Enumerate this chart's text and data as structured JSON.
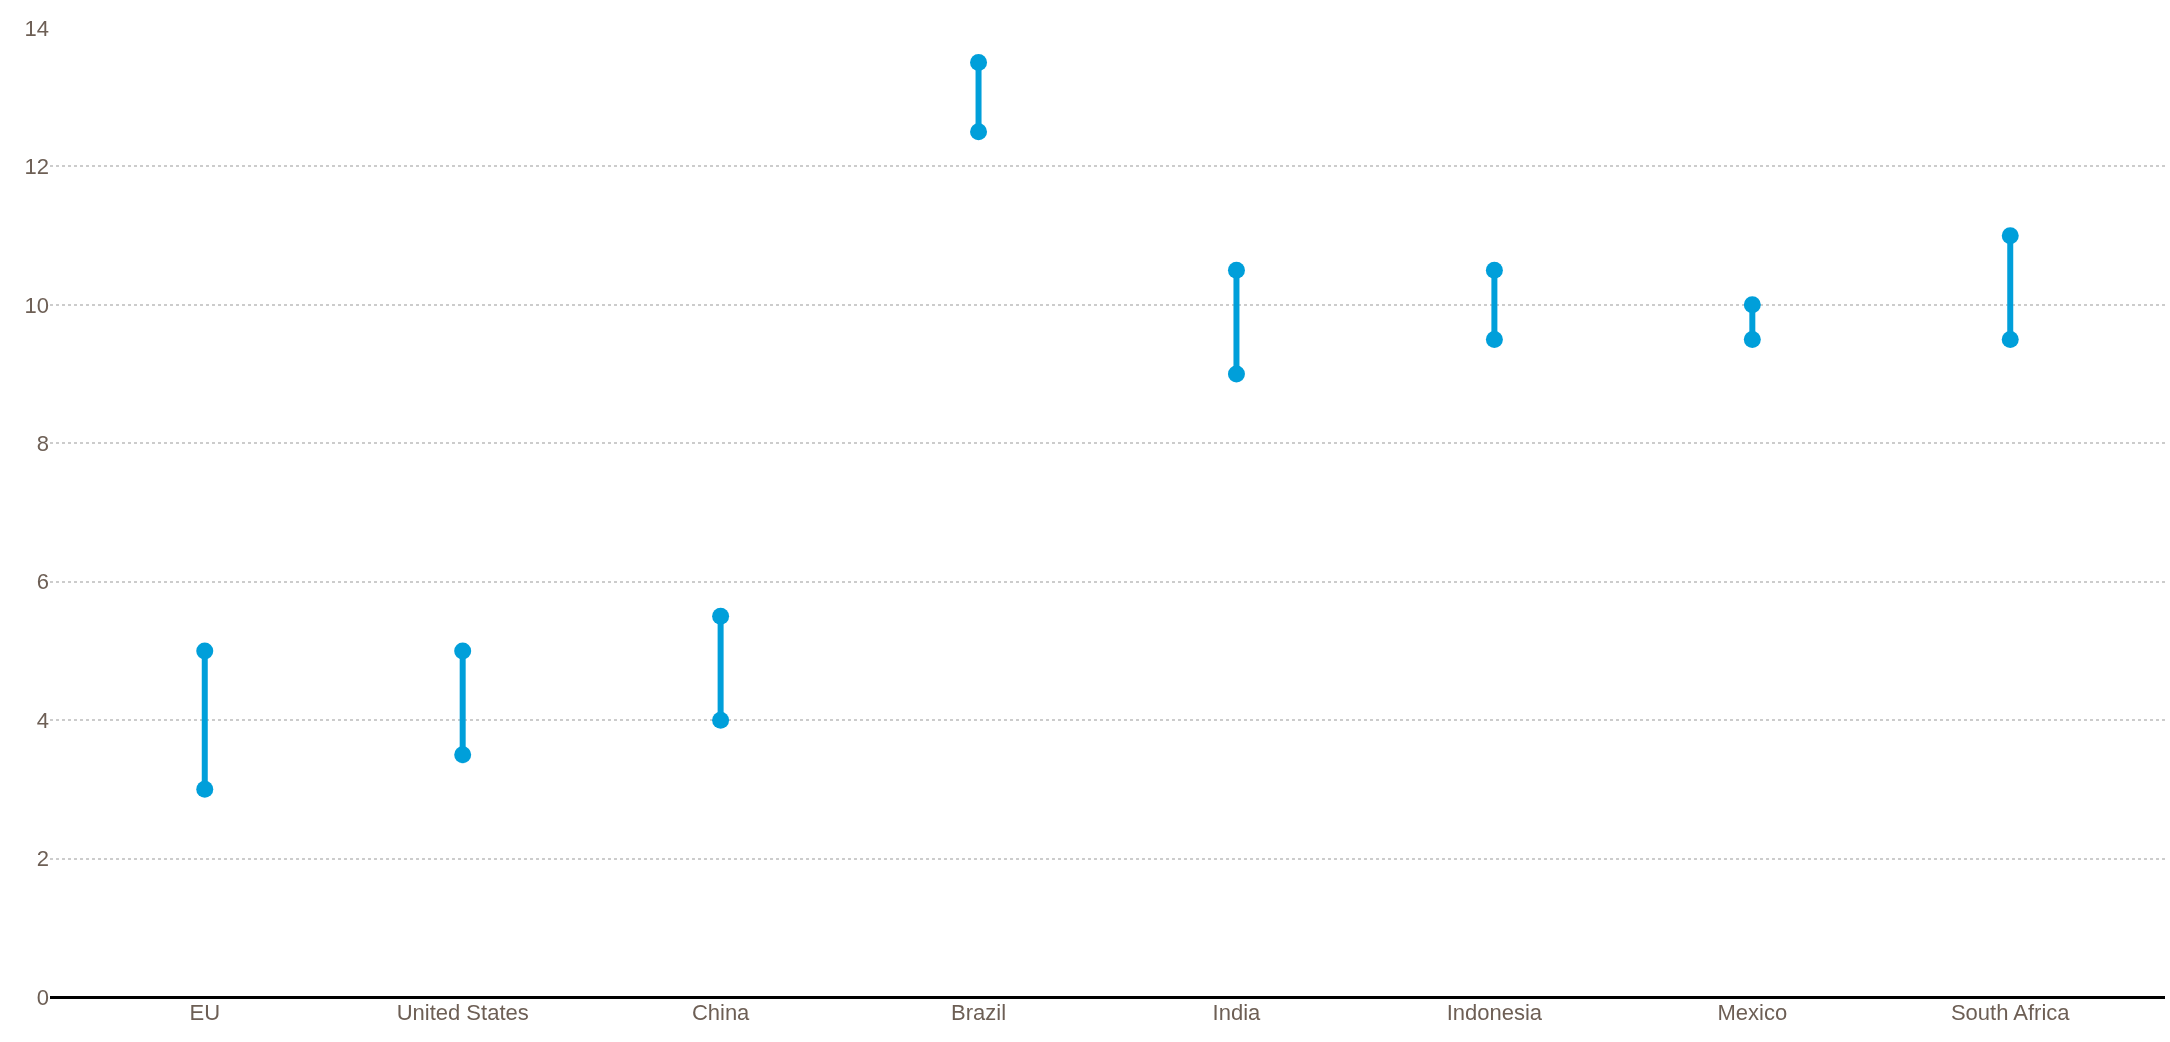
{
  "chart_data": {
    "type": "line",
    "categories": [
      "EU",
      "United States",
      "China",
      "Brazil",
      "India",
      "Indonesia",
      "Mexico",
      "South Africa"
    ],
    "series": [
      {
        "color": "#009fda",
        "x": [
          "EU",
          "EU"
        ],
        "values": [
          3,
          5
        ]
      },
      {
        "color": "#009fda",
        "x": [
          "United States",
          "United States"
        ],
        "values": [
          3.5,
          5
        ]
      },
      {
        "color": "#009fda",
        "x": [
          "China",
          "China"
        ],
        "values": [
          4,
          5.5
        ]
      },
      {
        "color": "#009fda",
        "x": [
          "Brazil",
          "Brazil"
        ],
        "values": [
          12.5,
          13.5
        ]
      },
      {
        "color": "#009fda",
        "x": [
          "India",
          "India"
        ],
        "values": [
          9,
          10.5
        ]
      },
      {
        "color": "#009fda",
        "x": [
          "Indonesia",
          "Indonesia"
        ],
        "values": [
          9.5,
          10.5
        ]
      },
      {
        "color": "#009fda",
        "x": [
          "Mexico",
          "Mexico"
        ],
        "values": [
          9.5,
          10
        ]
      },
      {
        "color": "#009fda",
        "x": [
          "South Africa",
          "South Africa"
        ],
        "values": [
          9.5,
          11
        ]
      }
    ],
    "marker": "circle",
    "ylim": [
      0,
      14
    ],
    "yticks": [
      0,
      2,
      4,
      6,
      8,
      10,
      12,
      14
    ],
    "grid": "y"
  }
}
